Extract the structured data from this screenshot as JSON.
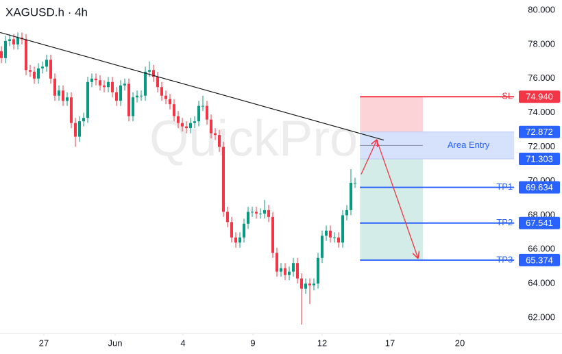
{
  "chart_data": {
    "type": "candlestick",
    "title": "XAGUSD.h · 4h",
    "watermark": "QuickPro",
    "colors": {
      "up": "#089981",
      "down": "#f23645"
    },
    "xlim": [
      -0.333,
      136.333
    ],
    "xticks": [
      {
        "value": 10.33,
        "label": "27"
      },
      {
        "value": 27.67,
        "label": "Jun"
      },
      {
        "value": 44.17,
        "label": "4"
      },
      {
        "value": 61.17,
        "label": "9"
      },
      {
        "value": 78,
        "label": "12"
      },
      {
        "value": 94.5,
        "label": "17"
      },
      {
        "value": 111.5,
        "label": "20"
      }
    ],
    "ylim": [
      61.08,
      80.6
    ],
    "yticks": [
      {
        "value": 80,
        "label": "80.000"
      },
      {
        "value": 78,
        "label": "78.000"
      },
      {
        "value": 76,
        "label": "76.000"
      },
      {
        "value": 74,
        "label": "74.000"
      },
      {
        "value": 72,
        "label": "72.000"
      },
      {
        "value": 70,
        "label": "70.000"
      },
      {
        "value": 68,
        "label": "68.000"
      },
      {
        "value": 66,
        "label": "66.000"
      },
      {
        "value": 64,
        "label": "64.000"
      },
      {
        "value": 62,
        "label": "62.000"
      }
    ],
    "open": [
      77.6,
      77.2,
      78.2,
      78.3,
      78.0,
      78.4,
      78.3,
      76.5,
      76.4,
      76.0,
      76.6,
      76.7,
      77.1,
      76.0,
      75.0,
      75.3,
      74.7,
      74.9,
      73.4,
      72.6,
      73.5,
      73.7,
      75.8,
      76.0,
      75.9,
      75.6,
      75.5,
      75.8,
      75.2,
      74.7,
      75.6,
      75.7,
      73.8,
      74.9,
      75.0,
      75.0,
      76.4,
      76.5,
      76.1,
      75.5,
      75.0,
      74.8,
      74.5,
      73.8,
      73.4,
      73.2,
      73.1,
      73.4,
      73.5,
      74.4,
      74.4,
      73.6,
      72.8,
      72.7,
      72.0,
      68.2,
      67.6,
      66.7,
      66.4,
      66.7,
      67.5,
      68.2,
      68.2,
      68.1,
      68.1,
      68.3,
      67.9,
      65.8,
      64.7,
      64.9,
      64.5,
      64.7,
      65.2,
      64.3,
      63.7,
      64.0,
      63.9,
      64.0,
      65.5,
      66.8,
      67.1,
      66.7,
      66.7,
      66.4,
      68.0,
      68.3,
      69.9
    ],
    "high": [
      77.9,
      78.5,
      78.6,
      78.6,
      78.7,
      78.7,
      78.6,
      76.8,
      76.7,
      76.9,
      77.0,
      77.4,
      77.4,
      76.3,
      75.6,
      75.6,
      75.2,
      75.2,
      73.7,
      73.8,
      74.0,
      76.1,
      76.3,
      76.3,
      76.2,
      75.9,
      76.1,
      76.1,
      75.5,
      75.9,
      76.0,
      76.0,
      75.2,
      75.3,
      75.3,
      76.7,
      77.0,
      76.8,
      76.4,
      75.8,
      75.3,
      75.1,
      74.8,
      74.1,
      73.7,
      73.5,
      73.7,
      73.8,
      74.7,
      75.0,
      74.7,
      73.9,
      73.1,
      73.0,
      72.3,
      68.5,
      67.9,
      67.0,
      67.0,
      67.8,
      68.5,
      68.5,
      68.5,
      68.4,
      68.9,
      68.6,
      68.2,
      66.1,
      65.2,
      65.2,
      65.0,
      65.5,
      65.5,
      64.6,
      64.3,
      64.3,
      64.3,
      65.8,
      67.1,
      67.4,
      67.4,
      67.0,
      67.0,
      68.3,
      68.6,
      70.7,
      70.2
    ],
    "low": [
      76.9,
      76.9,
      77.9,
      77.7,
      77.7,
      78.0,
      76.2,
      76.1,
      75.7,
      75.7,
      76.3,
      76.4,
      75.7,
      74.7,
      74.7,
      74.4,
      74.4,
      73.1,
      72.0,
      72.3,
      73.2,
      73.4,
      75.5,
      75.6,
      75.3,
      75.2,
      75.2,
      74.9,
      74.4,
      74.4,
      75.3,
      73.5,
      73.5,
      74.6,
      74.7,
      74.7,
      76.1,
      75.8,
      75.2,
      74.7,
      74.5,
      74.2,
      73.5,
      73.1,
      72.9,
      72.8,
      72.8,
      73.1,
      73.2,
      74.1,
      73.3,
      72.5,
      72.4,
      71.7,
      67.9,
      67.3,
      66.4,
      66.1,
      66.1,
      66.4,
      67.2,
      67.9,
      67.8,
      67.8,
      67.8,
      67.6,
      65.5,
      64.4,
      64.4,
      64.2,
      64.2,
      64.4,
      64.0,
      61.6,
      63.4,
      62.8,
      63.6,
      63.7,
      65.2,
      66.5,
      66.4,
      66.4,
      66.1,
      66.1,
      67.7,
      68.0,
      69.6
    ],
    "close": [
      77.2,
      78.2,
      78.3,
      78.0,
      78.4,
      78.3,
      76.5,
      76.4,
      76.0,
      76.6,
      76.7,
      77.1,
      76.0,
      75.0,
      75.3,
      74.7,
      74.9,
      73.4,
      72.6,
      73.5,
      73.7,
      75.8,
      76.0,
      75.9,
      75.6,
      75.5,
      75.8,
      75.2,
      74.7,
      75.6,
      75.7,
      73.8,
      74.9,
      75.0,
      75.0,
      76.4,
      76.5,
      76.1,
      75.5,
      75.0,
      74.8,
      74.5,
      73.8,
      73.4,
      73.2,
      73.1,
      73.4,
      73.5,
      74.4,
      74.4,
      73.6,
      72.8,
      72.7,
      72.0,
      68.2,
      67.6,
      66.7,
      66.4,
      66.7,
      67.5,
      68.2,
      68.2,
      68.1,
      68.1,
      68.3,
      67.9,
      65.8,
      64.7,
      64.9,
      64.5,
      64.7,
      65.2,
      64.3,
      63.7,
      64.0,
      63.9,
      64.0,
      65.5,
      66.8,
      67.1,
      66.7,
      66.7,
      66.4,
      68.0,
      68.3,
      69.9,
      69.9
    ],
    "trendline": {
      "x": [
        -0.3,
        93
      ],
      "y": [
        78.7,
        72.4
      ],
      "color": "#1a1a1a"
    },
    "zone_x": [
      87.2,
      102.5
    ],
    "line_x": [
      87.2,
      124.7
    ],
    "sl_zone_color": "#fcd3d6",
    "tp_zone_color": "#d3ece7",
    "area_entry": {
      "name": "Area Entry",
      "low": 71.303,
      "high": 72.872,
      "low_label": "71.303",
      "high_label": "72.872",
      "color": "#2962ff",
      "fill": "#d6e2fb"
    },
    "levels": [
      {
        "name": "SL",
        "value": 74.94,
        "value_label": "74.940",
        "color": "#f23645"
      },
      {
        "name": "TP1",
        "value": 69.634,
        "value_label": "69.634",
        "color": "#2962ff"
      },
      {
        "name": "TP2",
        "value": 67.541,
        "value_label": "67.541",
        "color": "#2962ff"
      },
      {
        "name": "TP3",
        "value": 65.374,
        "value_label": "65.374",
        "color": "#2962ff"
      }
    ],
    "arrow": {
      "x": [
        87.5,
        91.3,
        101.3
      ],
      "y": [
        70.4,
        72.4,
        65.5
      ],
      "color": "#f23645"
    }
  }
}
